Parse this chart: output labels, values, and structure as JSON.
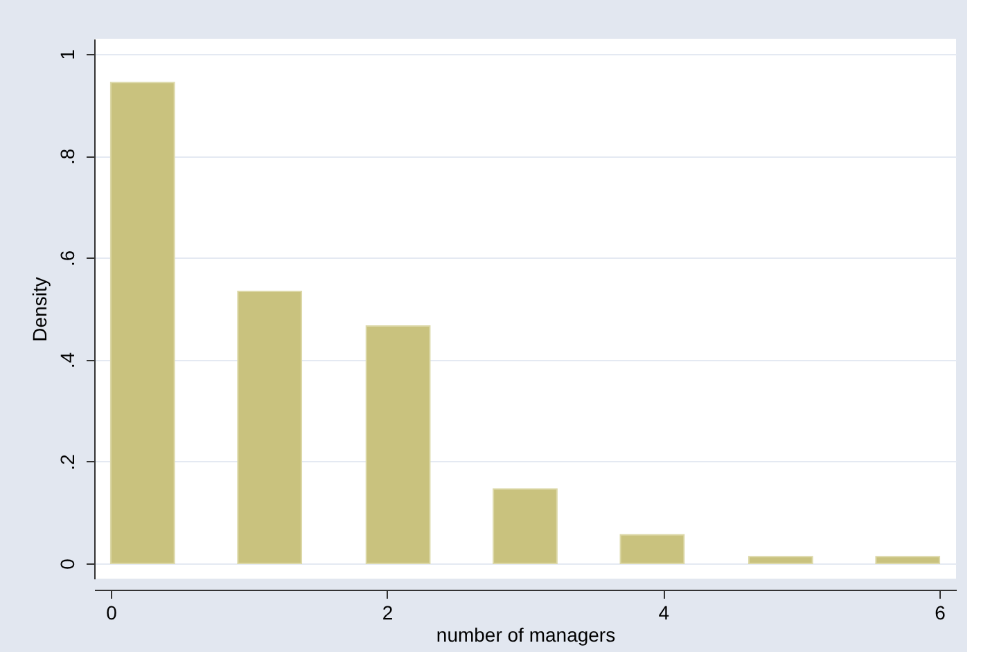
{
  "chart_data": {
    "type": "bar",
    "xlabel": "number of managers",
    "ylabel": "Density",
    "x": [
      0.23,
      1.15,
      2.08,
      3.0,
      3.92,
      4.85,
      5.77
    ],
    "values": [
      0.944,
      0.534,
      0.466,
      0.146,
      0.056,
      0.013,
      0.013
    ],
    "color": "#c9c27e",
    "xlim": [
      -0.12,
      6.12
    ],
    "xticks": [
      0,
      2,
      4,
      6
    ],
    "ylim": [
      -0.03,
      1.03
    ],
    "yticks": [
      0,
      {
        "value": 0.2,
        "label": ".2"
      },
      {
        "value": 0.4,
        "label": ".4"
      },
      {
        "value": 0.6,
        "label": ".6"
      },
      {
        "value": 0.8,
        "label": ".8"
      },
      1
    ],
    "grid": "y"
  }
}
